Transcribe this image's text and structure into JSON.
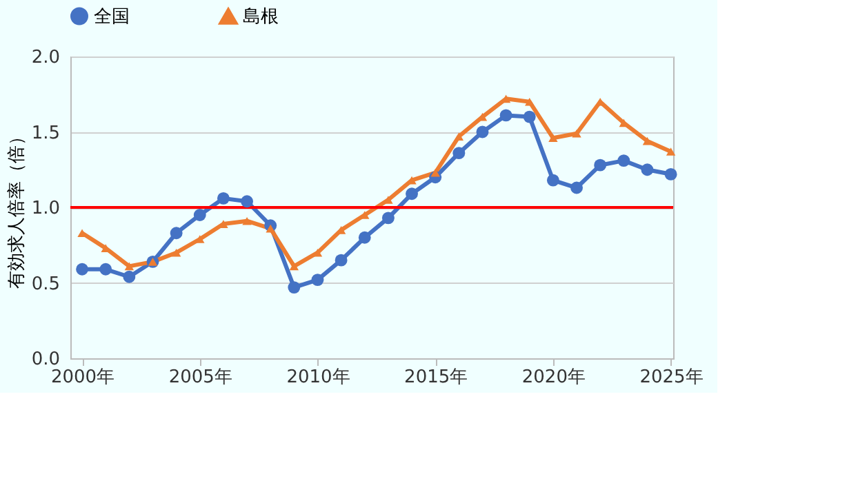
{
  "chart_data": {
    "type": "line",
    "ylabel": "有効求人倍率（倍）",
    "x": [
      2000,
      2001,
      2002,
      2003,
      2004,
      2005,
      2006,
      2007,
      2008,
      2009,
      2010,
      2011,
      2012,
      2013,
      2014,
      2015,
      2016,
      2017,
      2018,
      2019,
      2020,
      2021,
      2022,
      2023,
      2024,
      2025
    ],
    "series": [
      {
        "name": "全国",
        "color": "#4472c4",
        "marker": "circle",
        "values": [
          0.59,
          0.59,
          0.54,
          0.64,
          0.83,
          0.95,
          1.06,
          1.04,
          0.88,
          0.47,
          0.52,
          0.65,
          0.8,
          0.93,
          1.09,
          1.2,
          1.36,
          1.5,
          1.61,
          1.6,
          1.18,
          1.13,
          1.28,
          1.31,
          1.25,
          1.22
        ]
      },
      {
        "name": "島根",
        "color": "#ed7d31",
        "marker": "triangle",
        "values": [
          0.83,
          0.73,
          0.61,
          0.64,
          0.7,
          0.79,
          0.89,
          0.91,
          0.86,
          0.61,
          0.7,
          0.85,
          0.95,
          1.05,
          1.18,
          1.23,
          1.47,
          1.6,
          1.72,
          1.7,
          1.46,
          1.49,
          1.7,
          1.56,
          1.44,
          1.37
        ]
      }
    ],
    "xlim": [
      1999.5,
      2025.1
    ],
    "xticks": [
      {
        "value": 2000,
        "label": "2000年"
      },
      {
        "value": 2005,
        "label": "2005年"
      },
      {
        "value": 2010,
        "label": "2010年"
      },
      {
        "value": 2015,
        "label": "2015年"
      },
      {
        "value": 2020,
        "label": "2020年"
      },
      {
        "value": 2025,
        "label": "2025年"
      }
    ],
    "ylim": [
      0,
      2.0
    ],
    "yticks": [
      {
        "value": 0,
        "label": "0.0"
      },
      {
        "value": 0.5,
        "label": "0.5"
      },
      {
        "value": 1,
        "label": "1.0"
      },
      {
        "value": 1.5,
        "label": "1.5"
      },
      {
        "value": 2,
        "label": "2.0"
      }
    ],
    "ref_lines": [
      {
        "axis": "y",
        "value": 1.0,
        "label": null,
        "color": "#ff0000"
      }
    ],
    "grid": "y",
    "legend": "top",
    "line_style": "solid"
  }
}
